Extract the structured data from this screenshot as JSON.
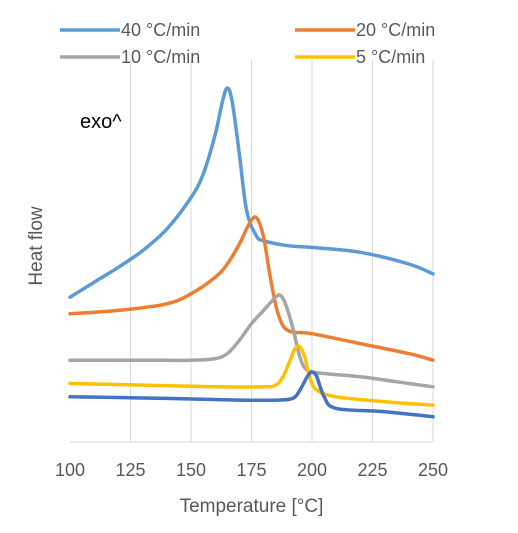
{
  "chart_data": {
    "type": "line",
    "title": "",
    "xlabel": "Temperature [°C]",
    "ylabel": "Heat flow",
    "xlim": [
      100,
      250
    ],
    "ylim": [
      0,
      100
    ],
    "x_ticks": [
      100,
      125,
      150,
      175,
      200,
      225,
      250
    ],
    "y_ticks_shown": false,
    "grid": "vertical",
    "legend_position": "top",
    "annotation": "exo^",
    "series": [
      {
        "name": "40 °C/min",
        "color": "#5B9BD5",
        "points": [
          [
            100,
            37
          ],
          [
            110,
            41.5
          ],
          [
            120,
            46
          ],
          [
            130,
            51
          ],
          [
            140,
            57.5
          ],
          [
            150,
            67
          ],
          [
            155,
            74
          ],
          [
            160,
            86
          ],
          [
            163,
            96
          ],
          [
            165,
            100
          ],
          [
            167,
            96
          ],
          [
            170,
            80
          ],
          [
            173,
            63
          ],
          [
            177,
            55.5
          ],
          [
            180,
            54
          ],
          [
            190,
            52.5
          ],
          [
            200,
            52
          ],
          [
            220,
            50.5
          ],
          [
            240,
            47
          ],
          [
            250,
            44
          ]
        ]
      },
      {
        "name": "20 °C/min",
        "color": "#ED7D31",
        "points": [
          [
            100,
            32
          ],
          [
            120,
            33
          ],
          [
            140,
            35
          ],
          [
            150,
            38
          ],
          [
            160,
            43
          ],
          [
            165,
            47
          ],
          [
            170,
            53
          ],
          [
            174,
            59
          ],
          [
            177,
            61
          ],
          [
            180,
            55
          ],
          [
            183,
            42
          ],
          [
            186,
            32
          ],
          [
            190,
            27
          ],
          [
            200,
            26
          ],
          [
            220,
            23
          ],
          [
            240,
            20
          ],
          [
            250,
            18
          ]
        ]
      },
      {
        "name": "10 °C/min",
        "color": "#A5A5A5",
        "points": [
          [
            100,
            18
          ],
          [
            130,
            18
          ],
          [
            150,
            18
          ],
          [
            160,
            18.5
          ],
          [
            165,
            20
          ],
          [
            170,
            24
          ],
          [
            175,
            29
          ],
          [
            180,
            33
          ],
          [
            185,
            37
          ],
          [
            187,
            37.5
          ],
          [
            189,
            35
          ],
          [
            192,
            28
          ],
          [
            195,
            19
          ],
          [
            198,
            15
          ],
          [
            205,
            14
          ],
          [
            220,
            13
          ],
          [
            240,
            11
          ],
          [
            250,
            10
          ]
        ]
      },
      {
        "name": "5 °C/min",
        "color": "#FFC000",
        "points": [
          [
            100,
            11
          ],
          [
            130,
            10.5
          ],
          [
            160,
            10
          ],
          [
            180,
            10
          ],
          [
            185,
            10.5
          ],
          [
            188,
            13
          ],
          [
            191,
            18
          ],
          [
            193,
            21.5
          ],
          [
            195,
            22
          ],
          [
            197,
            19
          ],
          [
            199,
            13
          ],
          [
            202,
            9
          ],
          [
            210,
            7
          ],
          [
            230,
            5.5
          ],
          [
            250,
            4.5
          ]
        ]
      },
      {
        "name": "",
        "color": "#4472C4",
        "points": [
          [
            100,
            7
          ],
          [
            140,
            6.5
          ],
          [
            170,
            6
          ],
          [
            185,
            6
          ],
          [
            192,
            6.5
          ],
          [
            195,
            9
          ],
          [
            198,
            13
          ],
          [
            200,
            14.5
          ],
          [
            202,
            13
          ],
          [
            205,
            7
          ],
          [
            210,
            3.5
          ],
          [
            230,
            2.5
          ],
          [
            250,
            1
          ]
        ]
      }
    ]
  }
}
